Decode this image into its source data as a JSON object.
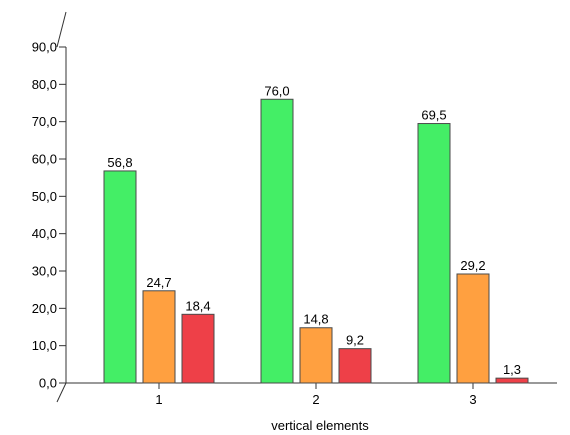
{
  "chart_data": {
    "type": "bar",
    "title": "",
    "xlabel": "vertical elements",
    "ylabel": "",
    "categories": [
      "1",
      "2",
      "3"
    ],
    "ylim": [
      0,
      90
    ],
    "yticks": [
      "0,0",
      "10,0",
      "20,0",
      "30,0",
      "40,0",
      "50,0",
      "60,0",
      "70,0",
      "80,0",
      "90,0"
    ],
    "grid": false,
    "legend": "none",
    "series": [
      {
        "values": [
          56.8,
          76.0,
          69.5
        ],
        "labels": [
          "56,8",
          "76,0",
          "69,5"
        ],
        "color": "#44ee66"
      },
      {
        "values": [
          24.7,
          14.8,
          29.2
        ],
        "labels": [
          "24,7",
          "14,8",
          "29,2"
        ],
        "color": "#ffa040"
      },
      {
        "values": [
          18.4,
          9.2,
          1.3
        ],
        "labels": [
          "18,4",
          "9,2",
          "1,3"
        ],
        "color": "#ee4048"
      }
    ]
  }
}
